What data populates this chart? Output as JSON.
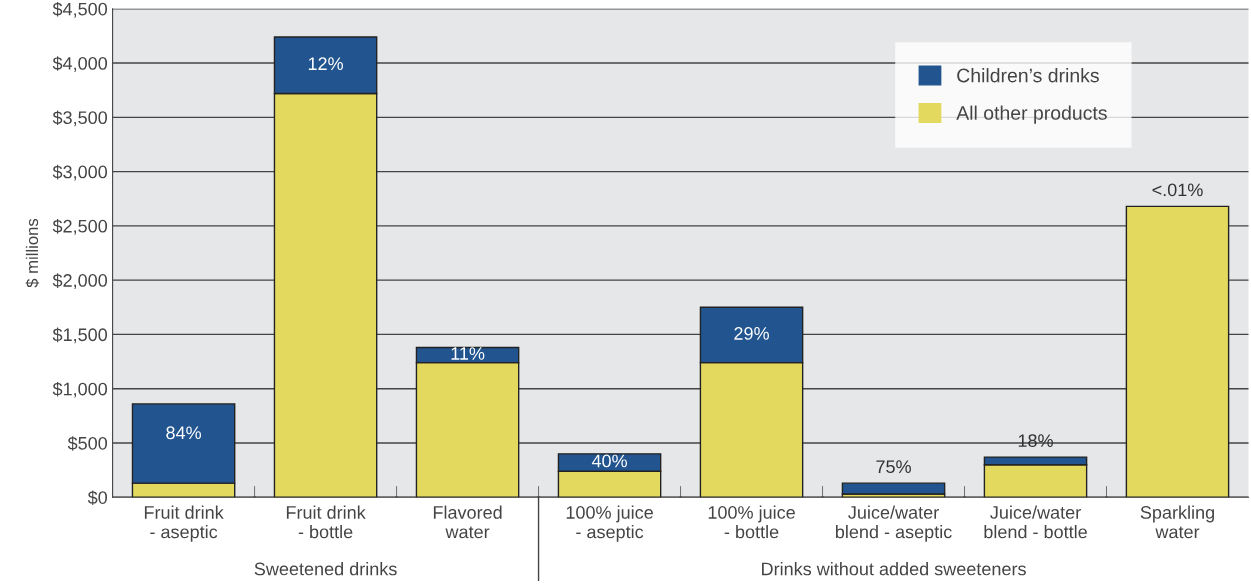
{
  "chart_data": {
    "type": "bar",
    "stacked": true,
    "ylabel": "$ millions",
    "categories": [
      "Fruit drink\n- aseptic",
      "Fruit drink\n- bottle",
      "Flavored\nwater",
      "100% juice\n- aseptic",
      "100% juice\n- bottle",
      "Juice/water\nblend - aseptic",
      "Juice/water\nblend - bottle",
      "Sparkling\nwater"
    ],
    "series": [
      {
        "name": "All other products",
        "color": "#e3d95f",
        "values": [
          130,
          3720,
          1240,
          240,
          1240,
          30,
          300,
          2680
        ]
      },
      {
        "name": "Children’s drinks",
        "color": "#22558f",
        "values": [
          730,
          520,
          140,
          160,
          510,
          100,
          70,
          0
        ]
      }
    ],
    "ylim": [
      0,
      4500
    ],
    "yticks": [
      {
        "value": 0,
        "label": "$0"
      },
      {
        "value": 500,
        "label": "$500"
      },
      {
        "value": 1000,
        "label": "$1,000"
      },
      {
        "value": 1500,
        "label": "$1,500"
      },
      {
        "value": 2000,
        "label": "$2,000"
      },
      {
        "value": 2500,
        "label": "$2,500"
      },
      {
        "value": 3000,
        "label": "$3,000"
      },
      {
        "value": 3500,
        "label": "$3,500"
      },
      {
        "value": 4000,
        "label": "$4,000"
      },
      {
        "value": 4500,
        "label": "$4,500"
      }
    ],
    "grid": "y",
    "legend": "top right",
    "annotations": [
      "Sweetened drinks",
      "Drinks without added sweeteners",
      {
        "text": "84%",
        "x": "Fruit drink\n- aseptic",
        "y": 860
      },
      {
        "text": "12%",
        "x": "Fruit drink\n- bottle",
        "y": 4240
      },
      {
        "text": "11%",
        "x": "Flavored\nwater",
        "y": 1380
      },
      {
        "text": "40%",
        "x": "100% juice\n- aseptic",
        "y": 400
      },
      {
        "text": "29%",
        "x": "100% juice\n- bottle",
        "y": 1750
      },
      {
        "text": "75%",
        "x": "Juice/water\nblend - aseptic",
        "y": 130
      },
      {
        "text": "18%",
        "x": "Juice/water\nblend - bottle",
        "y": 370
      },
      {
        "text": "<.01%",
        "x": "Sparkling\nwater",
        "y": 2680
      }
    ]
  }
}
